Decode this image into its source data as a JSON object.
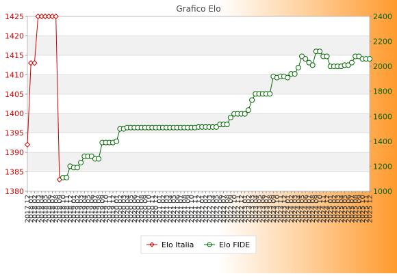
{
  "chart_data": {
    "type": "line",
    "title": "Grafico Elo",
    "x": [
      "2017 12",
      "2018 01",
      "2018 02",
      "2018 03",
      "2018 04",
      "2018 05",
      "2018 06",
      "2018 07",
      "2018 08",
      "2018 09",
      "2018 10",
      "2018 11",
      "2018 12",
      "2019 01",
      "2019 02",
      "2019 03",
      "2019 04",
      "2019 05",
      "2019 06",
      "2019 07",
      "2019 08",
      "2019 09",
      "2019 10",
      "2019 11",
      "2019 12",
      "2020 01",
      "2020 02",
      "2020 03",
      "2020 04",
      "2020 05",
      "2020 06",
      "2020 07",
      "2020 08",
      "2020 09",
      "2020 10",
      "2020 11",
      "2020 12",
      "2021 01",
      "2021 02",
      "2021 03",
      "2021 04",
      "2021 05",
      "2021 06",
      "2021 07",
      "2021 08",
      "2021 09",
      "2021 10",
      "2021 11",
      "2021 12",
      "2022 01",
      "2022 02",
      "2022 03",
      "2022 04",
      "2022 05",
      "2022 06",
      "2022 07",
      "2022 08",
      "2022 09",
      "2022 10",
      "2022 11",
      "2022 12",
      "2023 01",
      "2023 02",
      "2023 03",
      "2023 04",
      "2023 05",
      "2023 06",
      "2023 07",
      "2023 08",
      "2023 09",
      "2023 10",
      "2023 11",
      "2023 12",
      "2024 01",
      "2024 02",
      "2024 03",
      "2024 04",
      "2024 05",
      "2024 06",
      "2024 07",
      "2024 08",
      "2024 09",
      "2024 10",
      "2024 11",
      "2024 12",
      "2025 01",
      "2025 02",
      "2025 03",
      "2025 04",
      "2025 05",
      "2025 06",
      "2025 07",
      "2025 08",
      "2025 09",
      "2025 10",
      "2025 11",
      "2025 12"
    ],
    "y_left": {
      "min": 1380,
      "max": 1425,
      "ticks": [
        1380,
        1385,
        1390,
        1395,
        1400,
        1405,
        1410,
        1415,
        1420,
        1425
      ],
      "color": "#cc0000"
    },
    "y_right": {
      "min": 1000,
      "max": 2400,
      "ticks": [
        1000,
        1200,
        1400,
        1600,
        1800,
        2000,
        2200,
        2400
      ],
      "color": "#006600"
    },
    "grid": true,
    "legend_position": "bottom",
    "series": [
      {
        "name": "Elo Italia",
        "axis": "left",
        "color": "#cc0000",
        "marker": "diamond",
        "values": [
          1392,
          1413,
          1413,
          1425,
          1425,
          1425,
          1425,
          1425,
          1425,
          1383,
          null,
          null,
          null,
          null,
          null,
          null,
          null,
          null,
          null,
          null,
          null,
          null,
          null,
          null,
          null,
          null,
          null,
          null,
          null,
          null,
          null,
          null,
          null,
          null,
          null,
          null,
          null,
          null,
          null,
          null,
          null,
          null,
          null,
          null,
          null,
          null,
          null,
          null,
          null,
          null,
          null,
          null,
          null,
          null,
          null,
          null,
          null,
          null,
          null,
          null,
          null,
          null,
          null,
          null,
          null,
          null,
          null,
          null,
          null,
          null,
          null,
          null,
          null,
          null,
          null,
          null,
          null,
          null,
          null,
          null,
          null,
          null,
          null,
          null,
          null,
          null,
          null,
          null,
          null,
          null,
          null,
          null,
          null,
          null,
          null,
          null,
          null
        ]
      },
      {
        "name": "Elo FIDE",
        "axis": "right",
        "color": "#006600",
        "marker": "circle",
        "values": [
          null,
          null,
          null,
          null,
          null,
          null,
          null,
          null,
          null,
          null,
          1110,
          1110,
          1200,
          1190,
          1190,
          1230,
          1280,
          1280,
          1280,
          1260,
          1260,
          1390,
          1390,
          1390,
          1390,
          1400,
          1500,
          1500,
          1510,
          1510,
          1510,
          1510,
          1510,
          1510,
          1510,
          1510,
          1510,
          1510,
          1510,
          1510,
          1510,
          1510,
          1510,
          1510,
          1510,
          1510,
          1510,
          1510,
          1515,
          1515,
          1515,
          1515,
          1515,
          1515,
          1535,
          1535,
          1535,
          1590,
          1620,
          1620,
          1620,
          1620,
          1650,
          1730,
          1780,
          1780,
          1780,
          1780,
          1780,
          1920,
          1910,
          1920,
          1920,
          1910,
          1940,
          1940,
          1990,
          2080,
          2060,
          2030,
          2010,
          2120,
          2120,
          2080,
          2080,
          2000,
          2000,
          2000,
          2000,
          2010,
          2010,
          2030,
          2080,
          2080,
          2060,
          2060,
          2060
        ]
      }
    ]
  }
}
